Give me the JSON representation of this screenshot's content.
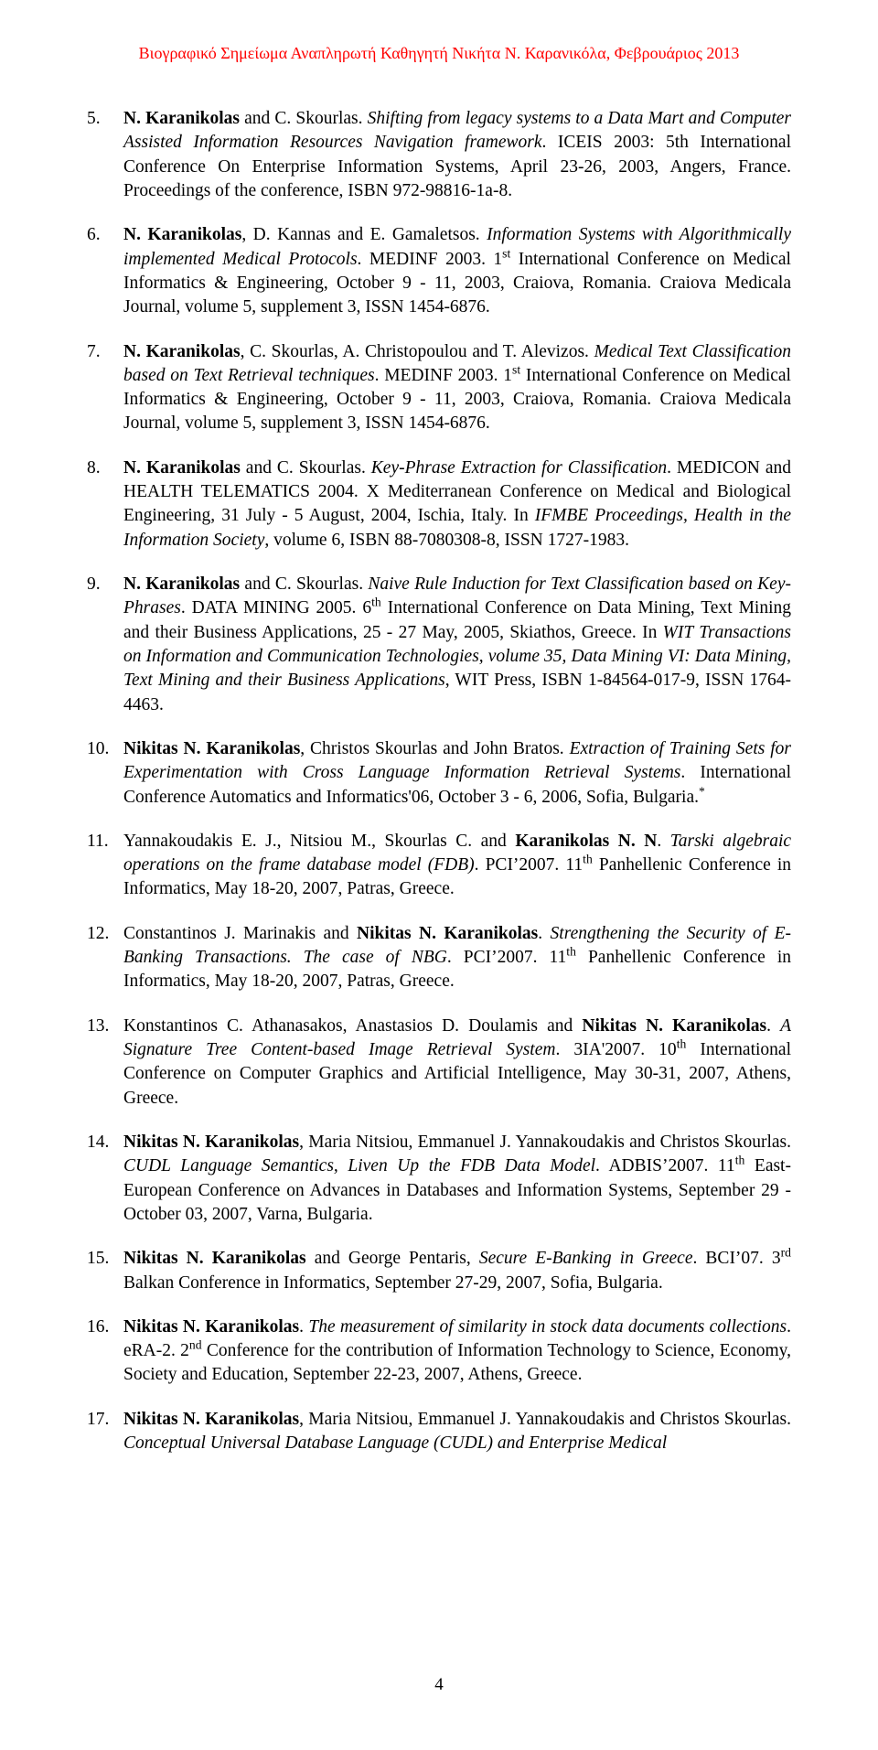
{
  "header": "Βιογραφικό Σημείωμα Αναπληρωτή Καθηγητή Νικήτα Ν. Καρανικόλα, Φεβρουάριος 2013",
  "page_number": "4",
  "entries": [
    {
      "num": "5.",
      "segments": [
        {
          "t": "N. Karanikolas",
          "b": true
        },
        {
          "t": " and C. Skourlas. "
        },
        {
          "t": "Shifting from legacy systems to a Data Mart and Computer Assisted Information Resources Navigation framework",
          "i": true
        },
        {
          "t": ". ICEIS 2003: 5th International Conference On Enterprise Information Systems, April 23-26, 2003, Angers, France. Proceedings of the conference, ISBN 972-98816-1a-8."
        }
      ]
    },
    {
      "num": "6.",
      "segments": [
        {
          "t": "N. Karanikolas",
          "b": true
        },
        {
          "t": ", D. Kannas and E. Gamaletsos. "
        },
        {
          "t": "Information Systems with Algorithmically implemented Medical Protocols",
          "i": true
        },
        {
          "t": ". MEDINF 2003. 1"
        },
        {
          "t": "st",
          "sup": true
        },
        {
          "t": " International Conference on Medical Informatics & Engineering, October 9 - 11, 2003, Craiova, Romania. Craiova Medicala Journal, volume 5, supplement 3, ISSN 1454-6876."
        }
      ]
    },
    {
      "num": "7.",
      "segments": [
        {
          "t": "N. Karanikolas",
          "b": true
        },
        {
          "t": ", C. Skourlas, A. Christopoulou and T. Alevizos. "
        },
        {
          "t": "Medical Text Classification based on Text Retrieval techniques",
          "i": true
        },
        {
          "t": ". MEDINF 2003. 1"
        },
        {
          "t": "st",
          "sup": true
        },
        {
          "t": " International Conference on Medical Informatics & Engineering, October 9 - 11, 2003, Craiova, Romania. Craiova Medicala Journal, volume 5, supplement 3, ISSN 1454-6876."
        }
      ]
    },
    {
      "num": "8.",
      "segments": [
        {
          "t": "N. Karanikolas",
          "b": true
        },
        {
          "t": " and C. Skourlas. "
        },
        {
          "t": "Key-Phrase Extraction for Classification",
          "i": true
        },
        {
          "t": ". MEDICON and HEALTH TELEMATICS 2004. X Mediterranean Conference on Medical and Biological Engineering, 31 July - 5 August, 2004, Ischia, Italy. In "
        },
        {
          "t": "IFMBE Proceedings, Health in the Information Society",
          "i": true
        },
        {
          "t": ", volume 6, ISBN 88-7080308-8, ISSN 1727-1983."
        }
      ]
    },
    {
      "num": "9.",
      "segments": [
        {
          "t": "N. Karanikolas",
          "b": true
        },
        {
          "t": " and C. Skourlas. "
        },
        {
          "t": "Naive Rule Induction for Text Classification based on Key-Phrases",
          "i": true
        },
        {
          "t": ". DATA MINING 2005. 6"
        },
        {
          "t": "th",
          "sup": true
        },
        {
          "t": " International Conference on Data Mining, Text Mining and their Business Applications, 25 - 27 May, 2005, Skiathos, Greece. In "
        },
        {
          "t": "WIT Transactions on Information and Communication Technologies, volume 35, Data Mining VI: Data Mining, Text Mining and their Business Applications",
          "i": true
        },
        {
          "t": ", WIT Press, ISBN 1-84564-017-9, ISSN 1764-4463."
        }
      ]
    },
    {
      "num": "10.",
      "segments": [
        {
          "t": "Nikitas N. Karanikolas",
          "b": true
        },
        {
          "t": ", Christos Skourlas and John Bratos. "
        },
        {
          "t": "Extraction of Training Sets for Experimentation with Cross Language Information Retrieval Systems",
          "i": true
        },
        {
          "t": ". International Conference Automatics and Informatics'06, October 3 - 6, 2006, Sofia, Bulgaria."
        },
        {
          "t": "*",
          "sup": true
        }
      ]
    },
    {
      "num": "11.",
      "segments": [
        {
          "t": "Yannakoudakis  E. J., Nitsiou M., Skourlas C. and "
        },
        {
          "t": "Karanikolas N. N",
          "b": true
        },
        {
          "t": ". "
        },
        {
          "t": "Tarski algebraic operations on the frame database model (FDB)",
          "i": true
        },
        {
          "t": ". PCI’2007. 11"
        },
        {
          "t": "th",
          "sup": true
        },
        {
          "t": " Panhellenic Conference in Informatics, May 18-20, 2007, Patras, Greece."
        }
      ]
    },
    {
      "num": "12.",
      "segments": [
        {
          "t": "Constantinos J. Marinakis and "
        },
        {
          "t": "Nikitas N. Karanikolas",
          "b": true
        },
        {
          "t": ". "
        },
        {
          "t": "Strengthening the Security of E-Banking Transactions. The case of NBG",
          "i": true
        },
        {
          "t": ". PCI’2007. 11"
        },
        {
          "t": "th",
          "sup": true
        },
        {
          "t": " Panhellenic Conference in Informatics, May 18-20, 2007, Patras, Greece."
        }
      ]
    },
    {
      "num": "13.",
      "segments": [
        {
          "t": "Konstantinos C. Athanasakos, Anastasios D. Doulamis and "
        },
        {
          "t": "Nikitas N. Karanikolas",
          "b": true
        },
        {
          "t": ". "
        },
        {
          "t": "A Signature Tree Content-based Image Retrieval System",
          "i": true
        },
        {
          "t": ". 3IA'2007. 10"
        },
        {
          "t": "th",
          "sup": true
        },
        {
          "t": " International Conference on Computer Graphics and Artificial Intelligence, May 30-31, 2007, Athens, Greece."
        }
      ]
    },
    {
      "num": "14.",
      "segments": [
        {
          "t": "Nikitas N. Karanikolas",
          "b": true
        },
        {
          "t": ", Maria Nitsiou, Emmanuel J. Yannakoudakis and Christos Skourlas. "
        },
        {
          "t": "CUDL Language Semantics, Liven Up the FDB Data Model",
          "i": true
        },
        {
          "t": ". ADBIS’2007. 11"
        },
        {
          "t": "th",
          "sup": true
        },
        {
          "t": " East-European Conference on Advances in Databases and Information Systems, September 29 - October 03, 2007, Varna, Bulgaria."
        }
      ]
    },
    {
      "num": "15.",
      "segments": [
        {
          "t": "Nikitas N. Karanikolas",
          "b": true
        },
        {
          "t": " and George Pentaris, "
        },
        {
          "t": "Secure E-Banking in Greece",
          "i": true
        },
        {
          "t": ". BCI’07. 3"
        },
        {
          "t": "rd",
          "sup": true
        },
        {
          "t": " Balkan Conference in Informatics, September 27-29, 2007, Sofia, Bulgaria."
        }
      ]
    },
    {
      "num": "16.",
      "segments": [
        {
          "t": "Nikitas N. Karanikolas",
          "b": true
        },
        {
          "t": ". "
        },
        {
          "t": "The measurement of similarity in stock data documents collections",
          "i": true
        },
        {
          "t": ". eRA-2. 2"
        },
        {
          "t": "nd",
          "sup": true
        },
        {
          "t": " Conference for the contribution of Information Technology to Science, Economy, Society and Education, September 22-23, 2007, Athens, Greece."
        }
      ]
    },
    {
      "num": "17.",
      "segments": [
        {
          "t": "Nikitas N. Karanikolas",
          "b": true
        },
        {
          "t": ", Maria Nitsiou, Emmanuel J. Yannakoudakis and Christos Skourlas. "
        },
        {
          "t": "Conceptual Universal Database Language (CUDL) and Enterprise Medical",
          "i": true
        }
      ]
    }
  ]
}
